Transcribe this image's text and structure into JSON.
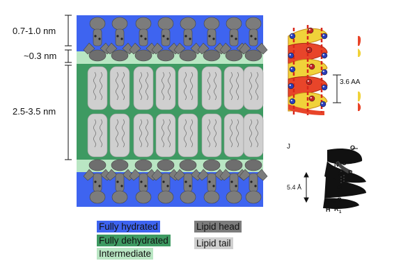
{
  "dimensions": {
    "head_region": "0.7-1.0 nm",
    "intermediate_region": "~0.3 nm",
    "tail_region": "2.5-3.5 nm"
  },
  "legend": {
    "fully_hydrated": "Fully hydrated",
    "fully_dehydrated": "Fully dehydrated",
    "intermediate": "Intermediate",
    "lipid_head": "Lipid head",
    "lipid_tail": "Lipid tail"
  },
  "colors": {
    "fully_hydrated": "#3e64f0",
    "fully_dehydrated": "#3e9a62",
    "intermediate": "#b9e6c3",
    "lipid_head": "#7c7c7c",
    "lipid_tail": "#cfcfcf"
  },
  "helix_top": {
    "pitch_label": "3.6 AA"
  },
  "helix_bottom": {
    "panel_letter": "J",
    "rise_label": "5.4 Å",
    "label_n1": "N",
    "label_c1": "C",
    "label_c1b": "C",
    "label_o_top": "O",
    "label_r5": "R",
    "label_r5_sub": "5",
    "label_h_mid": "H",
    "label_o_mid": "O",
    "label_n2": "N",
    "label_c2": "C",
    "label_c2b": "C",
    "label_h_bottom": "H",
    "label_r1": "R",
    "label_r1_sub": "1"
  }
}
